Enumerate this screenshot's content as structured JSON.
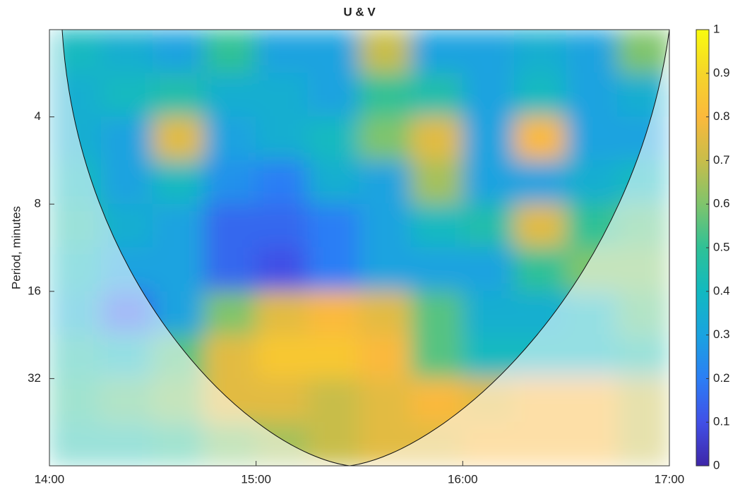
{
  "chart_data": {
    "type": "heatmap",
    "title": "U & V",
    "ylabel": "Period, minutes",
    "xlim": [
      14,
      17
    ],
    "xticks": [
      {
        "value": 14,
        "label": "14:00"
      },
      {
        "value": 15,
        "label": "15:00"
      },
      {
        "value": 16,
        "label": "16:00"
      },
      {
        "value": 17,
        "label": "17:00"
      }
    ],
    "ylim": [
      2,
      64
    ],
    "yticks": [
      4,
      8,
      16,
      32
    ],
    "yscale": "log2",
    "yreversed": true,
    "xbins": [
      14,
      14.25,
      14.5,
      14.75,
      15,
      15.25,
      15.5,
      15.75,
      16,
      16.25,
      16.5,
      16.75,
      17
    ],
    "ybins": [
      2,
      2.83,
      4,
      5.66,
      8,
      11.3,
      16,
      22.6,
      32,
      45.3,
      64
    ],
    "z": [
      [
        0.4,
        0.35,
        0.3,
        0.5,
        0.3,
        0.3,
        0.7,
        0.3,
        0.3,
        0.35,
        0.3,
        0.6
      ],
      [
        0.35,
        0.4,
        0.45,
        0.35,
        0.35,
        0.3,
        0.5,
        0.45,
        0.3,
        0.4,
        0.3,
        0.35
      ],
      [
        0.35,
        0.3,
        0.75,
        0.3,
        0.35,
        0.4,
        0.6,
        0.75,
        0.3,
        0.8,
        0.3,
        0.3
      ],
      [
        0.4,
        0.3,
        0.4,
        0.25,
        0.2,
        0.35,
        0.3,
        0.65,
        0.3,
        0.3,
        0.35,
        0.4
      ],
      [
        0.45,
        0.35,
        0.3,
        0.15,
        0.15,
        0.2,
        0.3,
        0.4,
        0.45,
        0.75,
        0.5,
        0.55
      ],
      [
        0.4,
        0.3,
        0.3,
        0.15,
        0.1,
        0.2,
        0.3,
        0.3,
        0.3,
        0.5,
        0.6,
        0.6
      ],
      [
        0.35,
        0.15,
        0.3,
        0.6,
        0.75,
        0.8,
        0.75,
        0.55,
        0.35,
        0.35,
        0.4,
        0.55
      ],
      [
        0.45,
        0.4,
        0.55,
        0.75,
        0.85,
        0.85,
        0.8,
        0.55,
        0.4,
        0.4,
        0.4,
        0.45
      ],
      [
        0.5,
        0.55,
        0.6,
        0.75,
        0.75,
        0.7,
        0.75,
        0.8,
        0.75,
        0.8,
        0.8,
        0.7
      ],
      [
        0.45,
        0.45,
        0.5,
        0.6,
        0.65,
        0.7,
        0.75,
        0.75,
        0.8,
        0.8,
        0.8,
        0.7
      ]
    ],
    "clim": [
      0,
      1
    ],
    "cticks": [
      0,
      0.1,
      0.2,
      0.3,
      0.4,
      0.5,
      0.6,
      0.7,
      0.8,
      0.9,
      1
    ],
    "colormap": [
      "#3e26a8",
      "#4150e6",
      "#2b7ef5",
      "#1aa3e0",
      "#12b9c0",
      "#2fc196",
      "#7fc46c",
      "#c8bd4a",
      "#fbb93c",
      "#f5d52a",
      "#f9fb0e"
    ]
  }
}
